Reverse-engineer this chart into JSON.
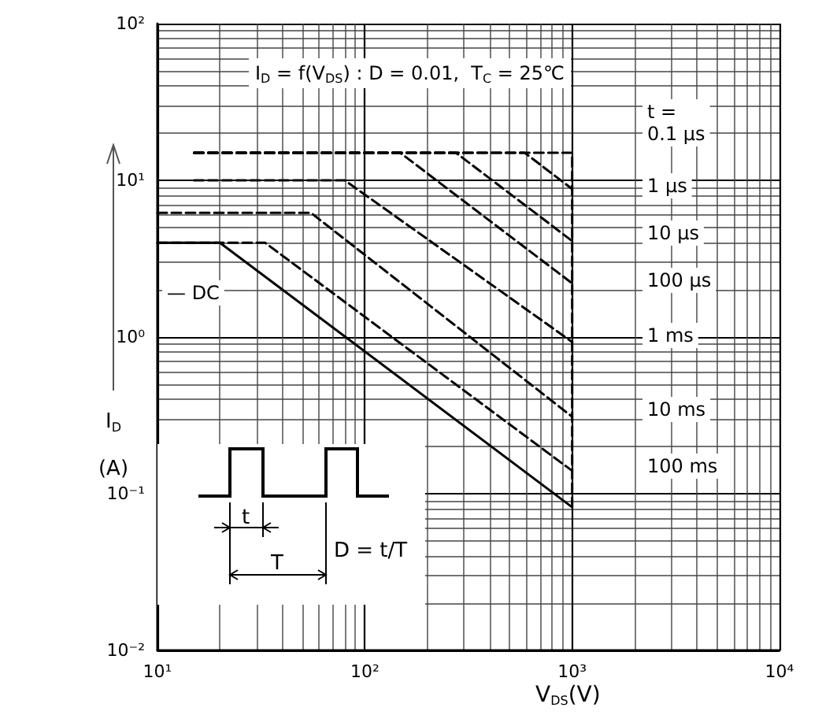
{
  "chart_data": {
    "type": "line",
    "title": "I$_{D}$ = f(V$_{DS}$) : D = 0.01,  T$_{C}$ = 25℃",
    "xlabel": "V$_{DS}$(V)",
    "ylabel": "I$_{D}$\n(A)",
    "log": "xy",
    "xlim": [
      10,
      10000
    ],
    "ylim": [
      0.01,
      100
    ],
    "xticks": [
      {
        "value": 10,
        "label": "10¹"
      },
      {
        "value": 100,
        "label": "10²"
      },
      {
        "value": 1000,
        "label": "10³"
      },
      {
        "value": 10000,
        "label": "10⁴"
      }
    ],
    "yticks": [
      {
        "value": 0.01,
        "label": "10⁻²"
      },
      {
        "value": 0.1,
        "label": "10⁻¹"
      },
      {
        "value": 1,
        "label": "10⁰"
      },
      {
        "value": 10,
        "label": "10¹"
      },
      {
        "value": 100,
        "label": "10²"
      }
    ],
    "grid": true,
    "series": [
      {
        "color": "#000000",
        "line_style": "dashed",
        "x": [
          15,
          1000,
          1000
        ],
        "values": [
          15,
          15,
          0.082
        ]
      },
      {
        "color": "#000000",
        "line_style": "dashed",
        "x": [
          15,
          590,
          1000
        ],
        "values": [
          15,
          15,
          8.8
        ]
      },
      {
        "color": "#000000",
        "line_style": "dashed",
        "x": [
          15,
          275,
          1000
        ],
        "values": [
          15,
          15,
          4.1
        ]
      },
      {
        "color": "#000000",
        "line_style": "dashed",
        "x": [
          15,
          148,
          1000
        ],
        "values": [
          15,
          15,
          2.2
        ]
      },
      {
        "color": "#000000",
        "line_style": "dashed",
        "x": [
          15,
          80,
          1000
        ],
        "values": [
          10,
          10,
          0.93
        ]
      },
      {
        "color": "#000000",
        "line_style": "dashed",
        "x": [
          10,
          55,
          1000
        ],
        "values": [
          6.2,
          6.2,
          0.31
        ]
      },
      {
        "color": "#000000",
        "line_style": "dashed",
        "x": [
          10,
          33,
          1000
        ],
        "values": [
          4,
          4,
          0.14
        ]
      },
      {
        "color": "#000000",
        "line_style": "solid",
        "x": [
          10,
          20,
          1000
        ],
        "values": [
          4,
          4,
          0.082
        ]
      }
    ],
    "annotations": [
      "t =\n0.1 μs",
      "1 μs",
      "10 μs",
      "100 μs",
      "1 ms",
      "10 ms",
      "100 ms",
      "— DC",
      "t",
      "T",
      "D = t/T"
    ]
  }
}
